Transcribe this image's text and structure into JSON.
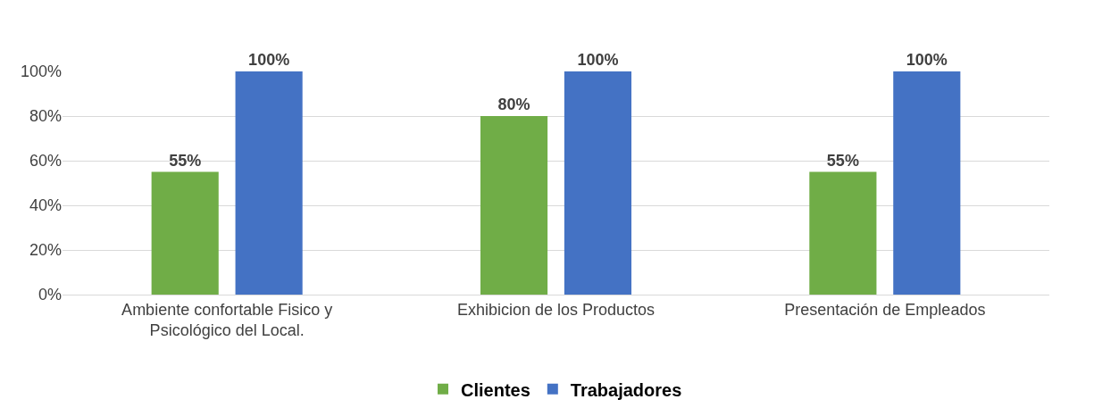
{
  "chart_data": {
    "type": "bar",
    "categories": [
      "Ambiente confortable Fisico y Psicológico del Local.",
      "Exhibicion de los Productos",
      "Presentación de Empleados"
    ],
    "series": [
      {
        "name": "Clientes",
        "color": "#70ad47",
        "values": [
          55,
          80,
          55
        ],
        "value_labels": [
          "55%",
          "80%",
          "55%"
        ]
      },
      {
        "name": "Trabajadores",
        "color": "#4472c4",
        "values": [
          100,
          100,
          100
        ],
        "value_labels": [
          "100%",
          "100%",
          "100%"
        ]
      }
    ],
    "ylim": [
      0,
      100
    ],
    "yticks": [
      {
        "value": 0,
        "label": "0%"
      },
      {
        "value": 20,
        "label": "20%"
      },
      {
        "value": 40,
        "label": "40%"
      },
      {
        "value": 60,
        "label": "60%"
      },
      {
        "value": 80,
        "label": "80%"
      },
      {
        "value": 100,
        "label": "100%"
      }
    ],
    "grid": "y",
    "legend": "bottom"
  }
}
